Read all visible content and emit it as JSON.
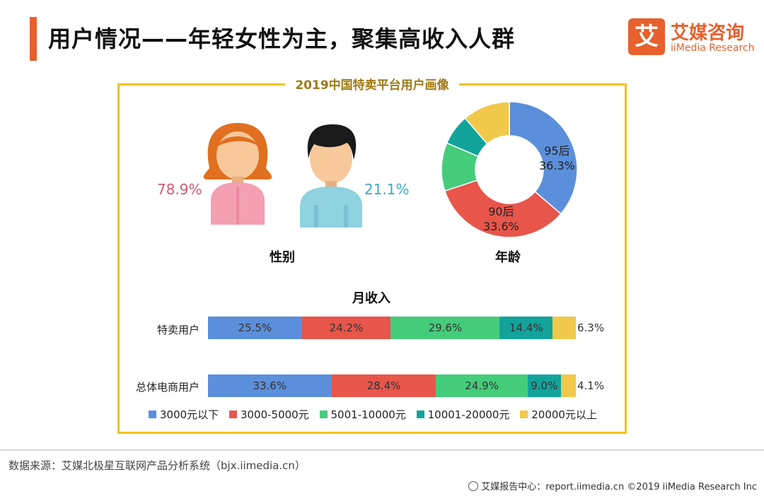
{
  "header": {
    "title": "用户情况——年轻女性为主，聚集高收入人群",
    "logo_cn": "艾媒咨询",
    "logo_en": "iiMedia Research",
    "logo_glyph": "艾"
  },
  "chart_data": [
    {
      "type": "pictogram",
      "title": "2019中国特卖平台用户画像",
      "label": "性别",
      "categories": [
        "女",
        "男"
      ],
      "values": [
        78.9,
        21.1
      ],
      "value_labels": [
        "78.9%",
        "21.1%"
      ],
      "colors": [
        "#d45a6e",
        "#3ba8c8"
      ],
      "icons": [
        "female-user-icon",
        "male-user-icon"
      ]
    },
    {
      "type": "pie",
      "label": "年龄",
      "donut": true,
      "slices": [
        {
          "name": "95后",
          "value": 36.3,
          "display": "36.3%",
          "color": "#5b8fdb"
        },
        {
          "name": "90后",
          "value": 33.6,
          "display": "33.6%",
          "color": "#e8554a"
        },
        {
          "name": "",
          "value": 11.5,
          "color": "#45cc7a"
        },
        {
          "name": "",
          "value": 7.3,
          "color": "#12a39a"
        },
        {
          "name": "",
          "value": 11.3,
          "color": "#f1c94a"
        }
      ]
    },
    {
      "type": "bar",
      "stacked": true,
      "orientation": "horizontal",
      "title": "月收入",
      "categories": [
        "特卖用户",
        "总体电商用户"
      ],
      "series": [
        {
          "name": "3000元以下",
          "color": "#5b8fdb",
          "values": [
            25.5,
            33.6
          ],
          "labels": [
            "25.5%",
            "33.6%"
          ]
        },
        {
          "name": "3000-5000元",
          "color": "#e8554a",
          "values": [
            24.2,
            28.4
          ],
          "labels": [
            "24.2%",
            "28.4%"
          ]
        },
        {
          "name": "5001-10000元",
          "color": "#45cc7a",
          "values": [
            29.6,
            24.9
          ],
          "labels": [
            "29.6%",
            "24.9%"
          ]
        },
        {
          "name": "10001-20000元",
          "color": "#12a39a",
          "values": [
            14.4,
            9.0
          ],
          "labels": [
            "14.4%",
            "9.0%"
          ]
        },
        {
          "name": "20000元以上",
          "color": "#f1c94a",
          "values": [
            6.3,
            4.1
          ],
          "labels": [
            "6.3%",
            "4.1%"
          ]
        }
      ]
    }
  ],
  "footer": {
    "source": "数据来源：艾媒北极星互联网产品分析系统（bjx.iimedia.cn）",
    "right": "艾媒报告中心：report.iimedia.cn  ©2019  iiMedia Research  Inc"
  },
  "colors": {
    "accent": "#e8602c",
    "frame": "#f2c318",
    "female_hair": "#e0701f",
    "female_body": "#f4a0b2",
    "male_hair": "#1a1a1a",
    "male_body": "#8fd2e0",
    "skin": "#f7c89a"
  }
}
